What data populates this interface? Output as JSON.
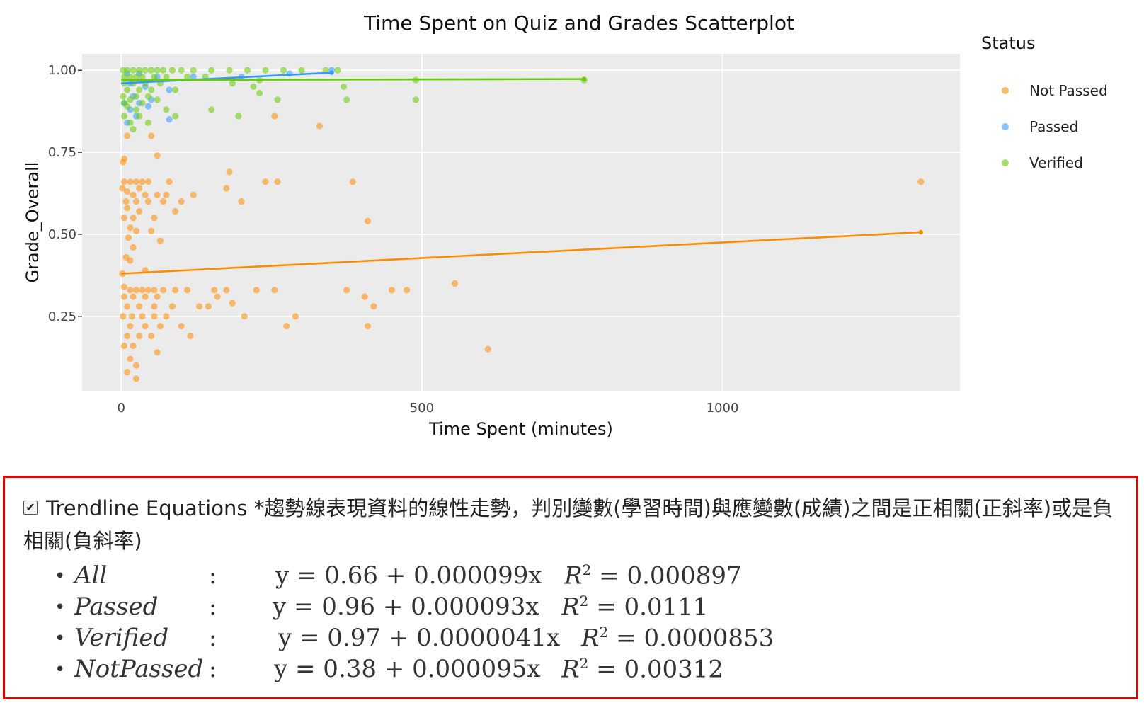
{
  "chart_data": {
    "type": "scatter",
    "title": "Time Spent on Quiz and Grades Scatterplot",
    "xlabel": "Time Spent (minutes)",
    "ylabel": "Grade_Overall",
    "xlim": [
      -65,
      1395
    ],
    "ylim": [
      0.023,
      1.05
    ],
    "x_ticks": [
      0,
      500,
      1000
    ],
    "y_ticks": [
      0.25,
      0.5,
      0.75,
      1.0
    ],
    "x_tick_labels": [
      "0",
      "500",
      "1000"
    ],
    "y_tick_labels": [
      "0.25",
      "0.50",
      "0.75",
      "1.00"
    ],
    "grid": true,
    "legend": {
      "title": "Status",
      "position": "right"
    },
    "series": [
      {
        "name": "Not Passed",
        "color": "#ff8c00",
        "points": [
          [
            330,
            0.83
          ],
          [
            255,
            0.86
          ],
          [
            10,
            0.8
          ],
          [
            50,
            0.8
          ],
          [
            5,
            0.73
          ],
          [
            60,
            0.74
          ],
          [
            3,
            0.72
          ],
          [
            180,
            0.69
          ],
          [
            5,
            0.66
          ],
          [
            15,
            0.66
          ],
          [
            25,
            0.66
          ],
          [
            35,
            0.66
          ],
          [
            45,
            0.66
          ],
          [
            80,
            0.66
          ],
          [
            240,
            0.66
          ],
          [
            260,
            0.66
          ],
          [
            385,
            0.66
          ],
          [
            1330,
            0.66
          ],
          [
            2,
            0.64
          ],
          [
            30,
            0.64
          ],
          [
            175,
            0.64
          ],
          [
            10,
            0.63
          ],
          [
            20,
            0.62
          ],
          [
            40,
            0.62
          ],
          [
            60,
            0.62
          ],
          [
            75,
            0.62
          ],
          [
            120,
            0.62
          ],
          [
            8,
            0.6
          ],
          [
            25,
            0.6
          ],
          [
            45,
            0.6
          ],
          [
            70,
            0.6
          ],
          [
            100,
            0.6
          ],
          [
            200,
            0.6
          ],
          [
            10,
            0.58
          ],
          [
            30,
            0.57
          ],
          [
            90,
            0.57
          ],
          [
            5,
            0.55
          ],
          [
            20,
            0.55
          ],
          [
            55,
            0.55
          ],
          [
            410,
            0.54
          ],
          [
            15,
            0.52
          ],
          [
            25,
            0.51
          ],
          [
            50,
            0.51
          ],
          [
            12,
            0.49
          ],
          [
            65,
            0.48
          ],
          [
            20,
            0.46
          ],
          [
            8,
            0.43
          ],
          [
            15,
            0.42
          ],
          [
            40,
            0.39
          ],
          [
            2,
            0.38
          ],
          [
            555,
            0.35
          ],
          [
            5,
            0.34
          ],
          [
            15,
            0.33
          ],
          [
            25,
            0.33
          ],
          [
            35,
            0.33
          ],
          [
            45,
            0.33
          ],
          [
            55,
            0.33
          ],
          [
            70,
            0.33
          ],
          [
            90,
            0.33
          ],
          [
            110,
            0.33
          ],
          [
            155,
            0.33
          ],
          [
            175,
            0.33
          ],
          [
            225,
            0.33
          ],
          [
            255,
            0.33
          ],
          [
            375,
            0.33
          ],
          [
            450,
            0.33
          ],
          [
            475,
            0.33
          ],
          [
            5,
            0.31
          ],
          [
            20,
            0.31
          ],
          [
            40,
            0.31
          ],
          [
            60,
            0.31
          ],
          [
            160,
            0.31
          ],
          [
            405,
            0.31
          ],
          [
            10,
            0.28
          ],
          [
            30,
            0.28
          ],
          [
            55,
            0.28
          ],
          [
            85,
            0.28
          ],
          [
            130,
            0.28
          ],
          [
            145,
            0.28
          ],
          [
            185,
            0.29
          ],
          [
            420,
            0.28
          ],
          [
            3,
            0.25
          ],
          [
            18,
            0.25
          ],
          [
            35,
            0.25
          ],
          [
            55,
            0.25
          ],
          [
            75,
            0.25
          ],
          [
            205,
            0.25
          ],
          [
            290,
            0.25
          ],
          [
            15,
            0.22
          ],
          [
            40,
            0.22
          ],
          [
            65,
            0.22
          ],
          [
            100,
            0.22
          ],
          [
            275,
            0.22
          ],
          [
            410,
            0.22
          ],
          [
            10,
            0.19
          ],
          [
            30,
            0.19
          ],
          [
            50,
            0.19
          ],
          [
            115,
            0.19
          ],
          [
            610,
            0.15
          ],
          [
            5,
            0.16
          ],
          [
            20,
            0.16
          ],
          [
            60,
            0.14
          ],
          [
            15,
            0.12
          ],
          [
            25,
            0.1
          ],
          [
            10,
            0.08
          ],
          [
            25,
            0.06
          ]
        ],
        "trendline": {
          "intercept": 0.38,
          "slope": 9.5e-05,
          "x_range": [
            0,
            1330
          ]
        }
      },
      {
        "name": "Passed",
        "color": "#3399ff",
        "points": [
          [
            350,
            1.0
          ],
          [
            10,
            0.99
          ],
          [
            30,
            0.99
          ],
          [
            60,
            0.98
          ],
          [
            120,
            0.98
          ],
          [
            200,
            0.98
          ],
          [
            280,
            0.99
          ],
          [
            15,
            0.96
          ],
          [
            40,
            0.95
          ],
          [
            80,
            0.94
          ],
          [
            20,
            0.92
          ],
          [
            50,
            0.91
          ],
          [
            5,
            0.9
          ],
          [
            30,
            0.9
          ],
          [
            45,
            0.89
          ],
          [
            15,
            0.88
          ],
          [
            25,
            0.86
          ],
          [
            80,
            0.85
          ],
          [
            10,
            0.84
          ]
        ],
        "trendline": {
          "intercept": 0.96,
          "slope": 9.3e-05,
          "x_range": [
            0,
            350
          ]
        }
      },
      {
        "name": "Verified",
        "color": "#66cc00",
        "points": [
          [
            3,
            1.0
          ],
          [
            10,
            1.0
          ],
          [
            20,
            1.0
          ],
          [
            30,
            1.0
          ],
          [
            40,
            1.0
          ],
          [
            50,
            1.0
          ],
          [
            60,
            1.0
          ],
          [
            70,
            1.0
          ],
          [
            85,
            1.0
          ],
          [
            100,
            1.0
          ],
          [
            120,
            1.0
          ],
          [
            150,
            1.0
          ],
          [
            180,
            1.0
          ],
          [
            210,
            1.0
          ],
          [
            240,
            1.0
          ],
          [
            270,
            1.0
          ],
          [
            300,
            1.0
          ],
          [
            340,
            1.0
          ],
          [
            360,
            1.0
          ],
          [
            5,
            0.98
          ],
          [
            15,
            0.98
          ],
          [
            25,
            0.98
          ],
          [
            35,
            0.98
          ],
          [
            55,
            0.98
          ],
          [
            75,
            0.98
          ],
          [
            110,
            0.98
          ],
          [
            140,
            0.98
          ],
          [
            230,
            0.97
          ],
          [
            490,
            0.97
          ],
          [
            770,
            0.97
          ],
          [
            5,
            0.96
          ],
          [
            20,
            0.96
          ],
          [
            40,
            0.96
          ],
          [
            65,
            0.96
          ],
          [
            185,
            0.96
          ],
          [
            370,
            0.95
          ],
          [
            220,
            0.95
          ],
          [
            10,
            0.94
          ],
          [
            30,
            0.94
          ],
          [
            50,
            0.94
          ],
          [
            90,
            0.94
          ],
          [
            230,
            0.93
          ],
          [
            3,
            0.92
          ],
          [
            25,
            0.92
          ],
          [
            45,
            0.92
          ],
          [
            15,
            0.91
          ],
          [
            60,
            0.91
          ],
          [
            260,
            0.91
          ],
          [
            375,
            0.91
          ],
          [
            490,
            0.91
          ],
          [
            5,
            0.9
          ],
          [
            35,
            0.9
          ],
          [
            10,
            0.89
          ],
          [
            25,
            0.88
          ],
          [
            75,
            0.88
          ],
          [
            150,
            0.88
          ],
          [
            195,
            0.86
          ],
          [
            90,
            0.86
          ],
          [
            5,
            0.86
          ],
          [
            30,
            0.86
          ],
          [
            15,
            0.84
          ],
          [
            45,
            0.84
          ],
          [
            20,
            0.82
          ]
        ],
        "trendline": {
          "intercept": 0.97,
          "slope": 4.1e-06,
          "x_range": [
            0,
            770
          ]
        }
      }
    ]
  },
  "panel": {
    "checkbox_checked": "✔",
    "heading_label": "Trendline Equations",
    "heading_note": "*趨勢線表現資料的線性走勢，判別變數(學習時間)與應變數(成績)之間是正相關(正斜率)或是負相關(負斜率)",
    "equations": [
      {
        "name": "All",
        "colon": ":",
        "equation": "y = 0.66 + 0.000099x",
        "r2_label": "R",
        "r2_sup": "2",
        "r2_value": " = 0.000897"
      },
      {
        "name": "Passed",
        "colon": ":",
        "equation": "y = 0.96 + 0.000093x",
        "r2_label": "R",
        "r2_sup": "2",
        "r2_value": " = 0.0111"
      },
      {
        "name": "Verified",
        "colon": ":",
        "equation": "y = 0.97 + 0.0000041x",
        "r2_label": "R",
        "r2_sup": "2",
        "r2_value": " = 0.0000853"
      },
      {
        "name": "NotPassed",
        "colon": ":",
        "equation": "y = 0.38 + 0.000095x",
        "r2_label": "R",
        "r2_sup": "2",
        "r2_value": " = 0.00312"
      }
    ]
  }
}
